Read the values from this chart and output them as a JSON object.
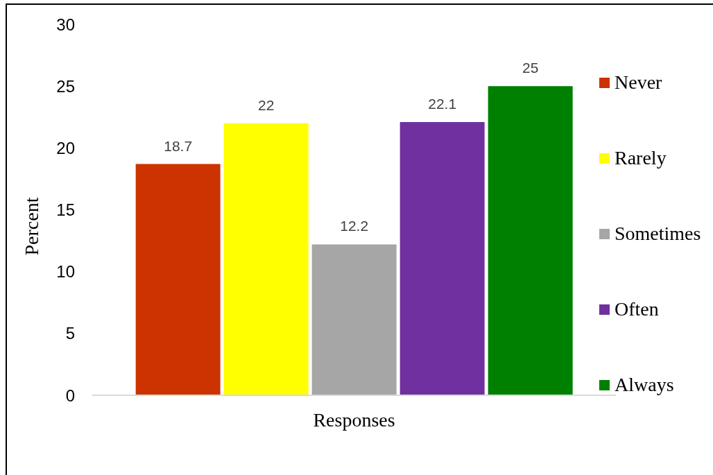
{
  "chart_data": {
    "type": "bar",
    "xlabel": "Responses",
    "ylabel": "Percent",
    "categories": [
      null
    ],
    "series": [
      {
        "name": "Never",
        "color": "#cc3300",
        "values": [
          18.7
        ]
      },
      {
        "name": "Rarely",
        "color": "#ffff00",
        "values": [
          22
        ]
      },
      {
        "name": "Sometimes",
        "color": "#a6a6a6",
        "values": [
          12.2
        ]
      },
      {
        "name": "Often",
        "color": "#7030a0",
        "values": [
          22.1
        ]
      },
      {
        "name": "Always",
        "color": "#008000",
        "values": [
          25
        ]
      }
    ],
    "ylim": [
      0,
      30
    ],
    "yticks": [
      0,
      5,
      10,
      15,
      20,
      25,
      30
    ],
    "data_labels": true,
    "legend": "right"
  }
}
